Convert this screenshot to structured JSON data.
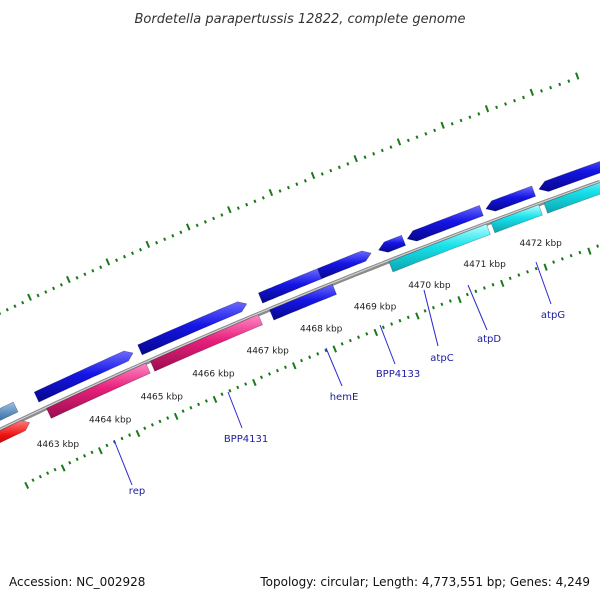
{
  "title": "Bordetella parapertussis 12822, complete genome",
  "footer": {
    "accession": "Accession: NC_002928",
    "summary": "Topology: circular; Length: 4,773,551 bp; Genes: 4,249"
  },
  "kbp_labels": [
    "4463 kbp",
    "4464 kbp",
    "4465 kbp",
    "4466 kbp",
    "4467 kbp",
    "4468 kbp",
    "4469 kbp",
    "4470 kbp",
    "4471 kbp",
    "4472 kbp"
  ],
  "gene_labels": [
    "rep",
    "BPP4131",
    "hemE",
    "BPP4133",
    "atpC",
    "atpD",
    "atpG"
  ],
  "colors": {
    "forward_gene": "#1010e0",
    "reverse_gene": "#e0207a",
    "cyan_gene": "#18e0e8",
    "red_gene": "#ee1010",
    "steel_gene": "#4a7db0",
    "backbone": "#8a8a8a",
    "tick": "#1a7a1a",
    "label_line": "#2a2ad0"
  }
}
